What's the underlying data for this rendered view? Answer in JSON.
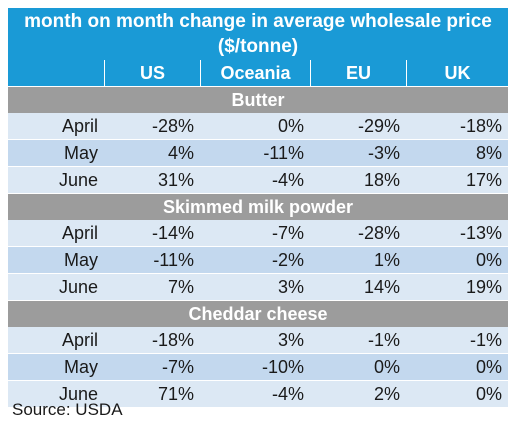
{
  "chart_data": {
    "type": "table",
    "title": "month on month change in average wholesale price ($/tonne)",
    "columns": [
      "US",
      "Oceania",
      "EU",
      "UK"
    ],
    "sections": [
      {
        "name": "Butter",
        "rows": [
          {
            "label": "April",
            "values": [
              "-28%",
              "0%",
              "-29%",
              "-18%"
            ]
          },
          {
            "label": "May",
            "values": [
              "4%",
              "-11%",
              "-3%",
              "8%"
            ]
          },
          {
            "label": "June",
            "values": [
              "31%",
              "-4%",
              "18%",
              "17%"
            ]
          }
        ]
      },
      {
        "name": "Skimmed milk powder",
        "rows": [
          {
            "label": "April",
            "values": [
              "-14%",
              "-7%",
              "-28%",
              "-13%"
            ]
          },
          {
            "label": "May",
            "values": [
              "-11%",
              "-2%",
              "1%",
              "0%"
            ]
          },
          {
            "label": "June",
            "values": [
              "7%",
              "3%",
              "14%",
              "19%"
            ]
          }
        ]
      },
      {
        "name": "Cheddar cheese",
        "rows": [
          {
            "label": "April",
            "values": [
              "-18%",
              "3%",
              "-1%",
              "-1%"
            ]
          },
          {
            "label": "May",
            "values": [
              "-7%",
              "-10%",
              "0%",
              "0%"
            ]
          },
          {
            "label": "June",
            "values": [
              "71%",
              "-4%",
              "2%",
              "0%"
            ]
          }
        ]
      }
    ],
    "source": "Source: USDA",
    "colors": {
      "header": "#1a9ad6",
      "section": "#9c9c9c",
      "row_light": "#dce8f4",
      "row_dark": "#c3d8ee"
    }
  }
}
